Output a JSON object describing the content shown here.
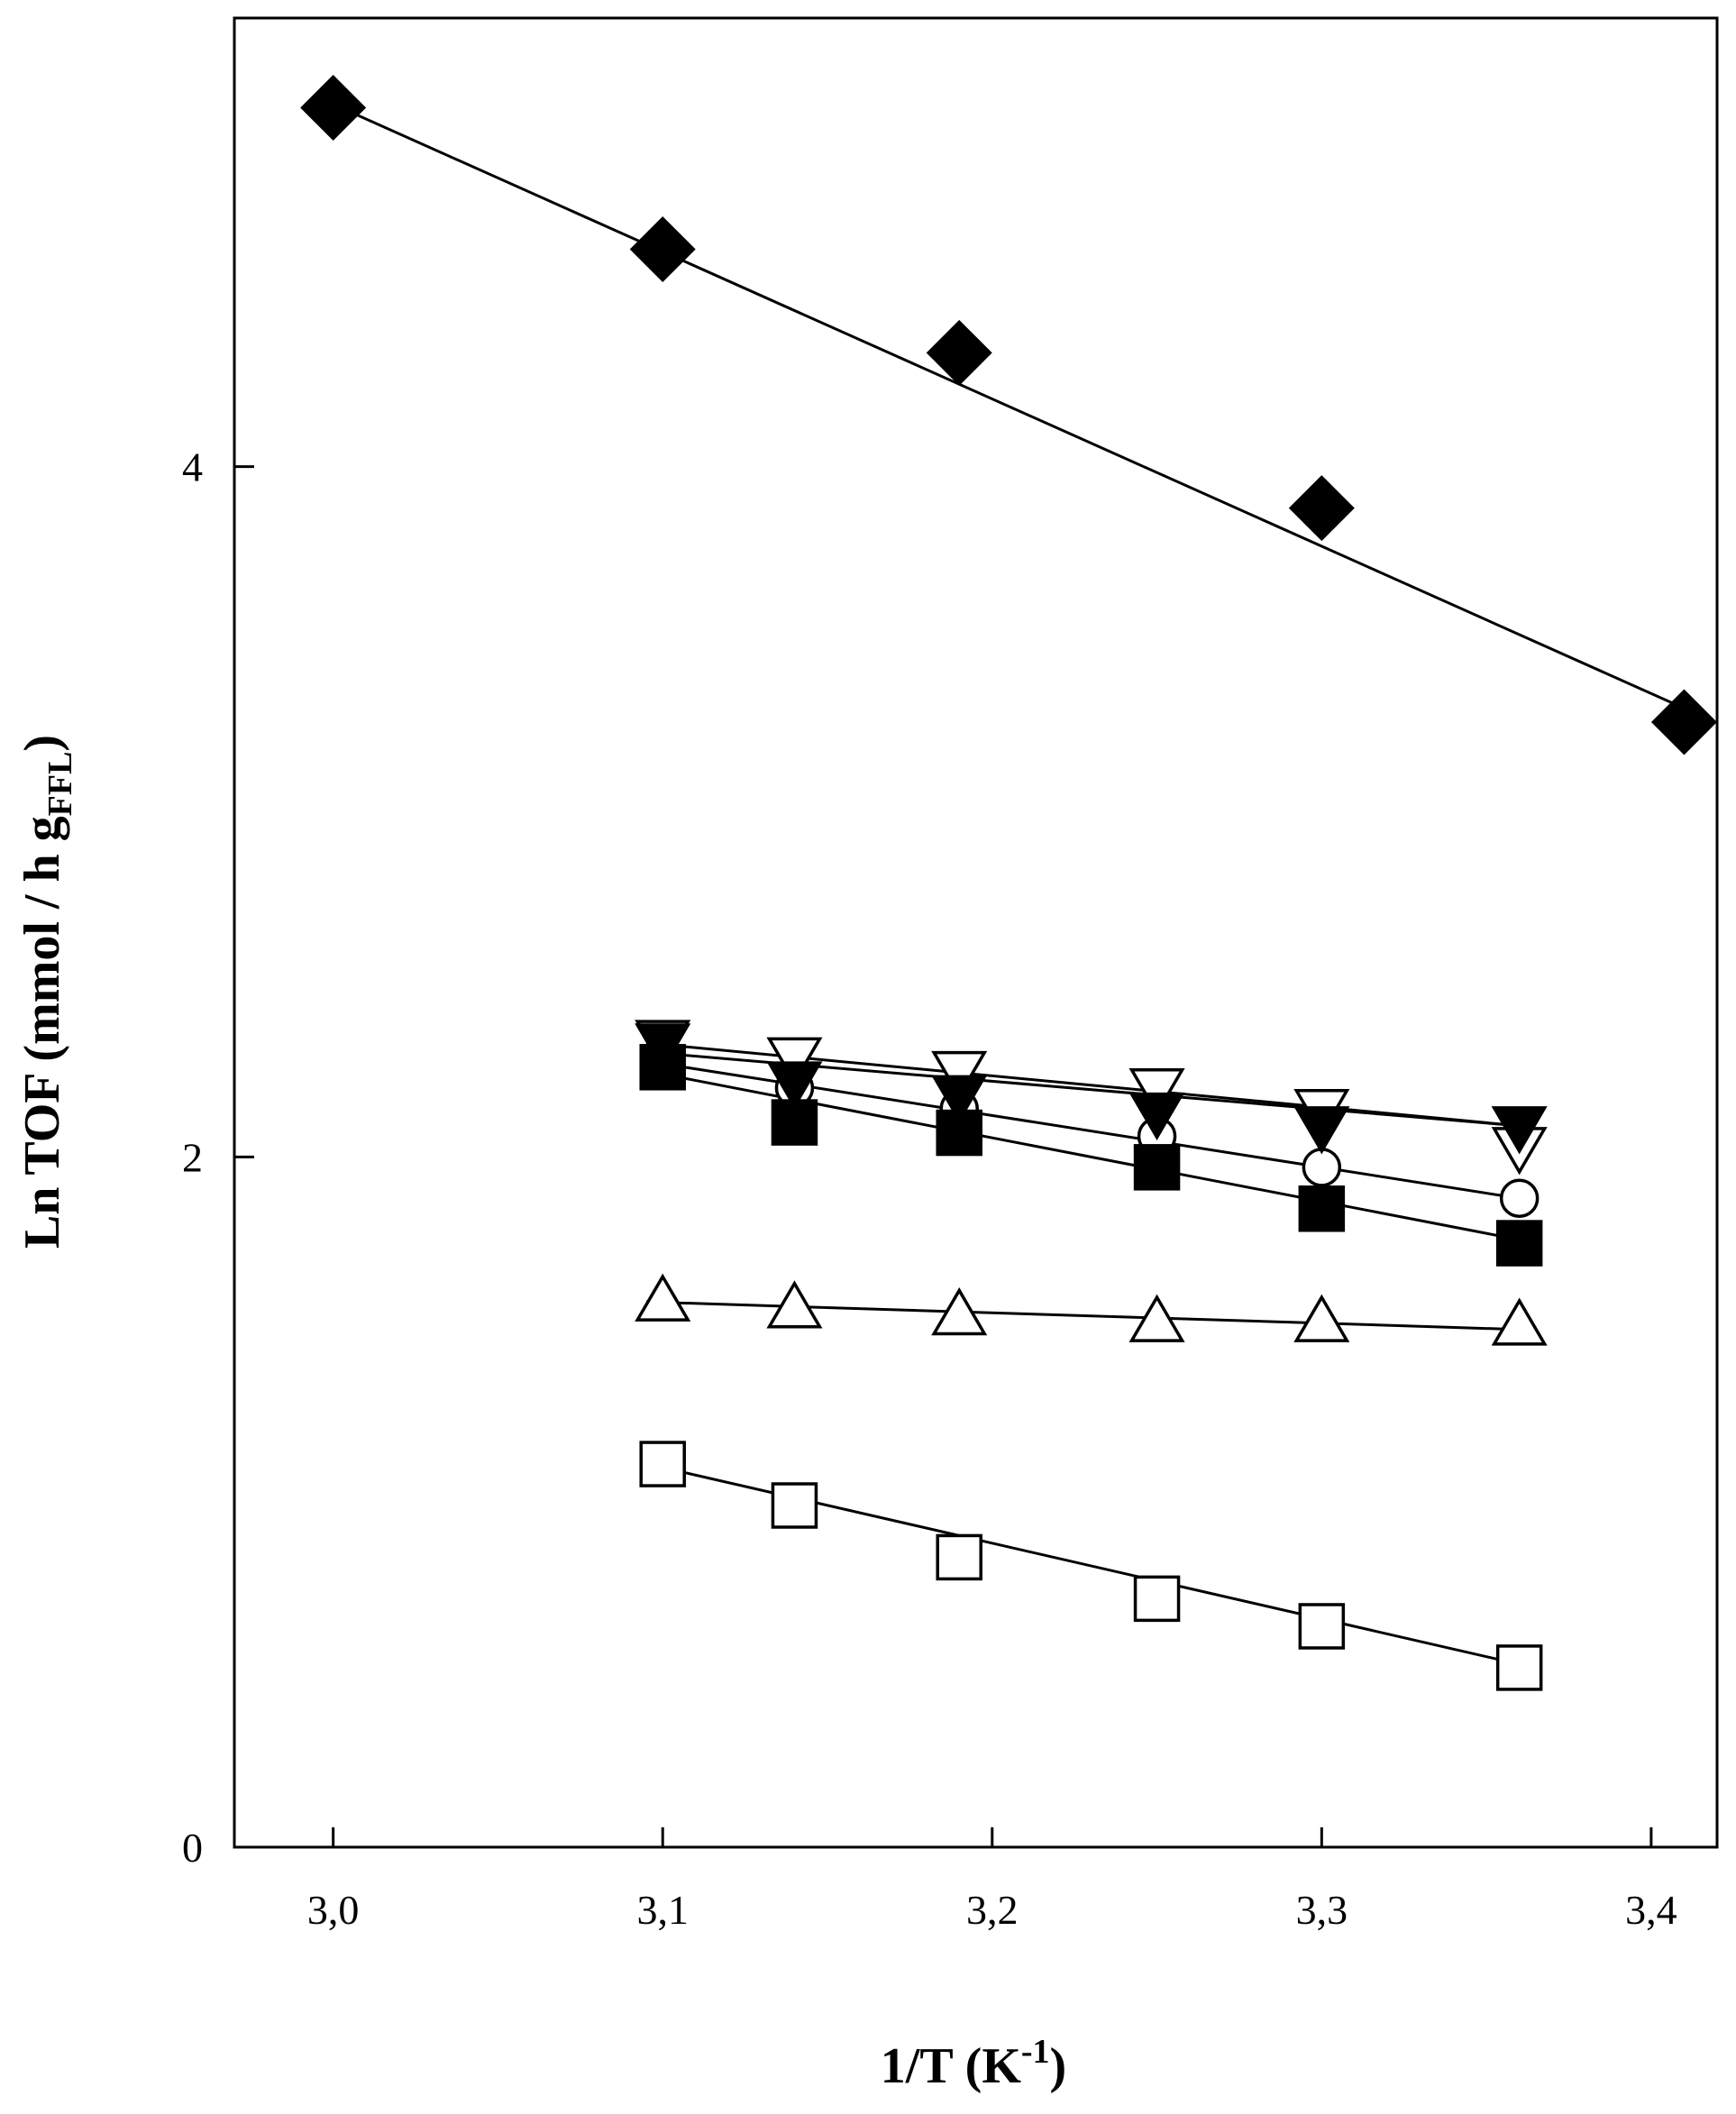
{
  "chart_data": {
    "type": "scatter",
    "title": "",
    "xlabel": {
      "main": "1/T (K",
      "sup": "-1",
      "close": ")"
    },
    "ylabel": {
      "main": "Ln TOF (mmol / h g",
      "sub": "FFL",
      "close": ")"
    },
    "xlim": [
      2.97,
      3.42
    ],
    "ylim": [
      0,
      5.3
    ],
    "xticks": [
      3.0,
      3.1,
      3.2,
      3.3,
      3.4
    ],
    "xtick_labels": [
      "3,0",
      "3,1",
      "3,2",
      "3,3",
      "3,4"
    ],
    "yticks": [
      0,
      2,
      4
    ],
    "ytick_labels": [
      "0",
      "2",
      "4"
    ],
    "grid": false,
    "series": [
      {
        "name": "filled-diamond",
        "marker": "diamond",
        "filled": true,
        "x": [
          3.0,
          3.1,
          3.19,
          3.3,
          3.41
        ],
        "y": [
          5.04,
          4.63,
          4.33,
          3.88,
          3.26
        ],
        "fit": {
          "x": [
            3.0,
            3.41
          ],
          "y": [
            5.05,
            3.3
          ]
        }
      },
      {
        "name": "open-down-triangle",
        "marker": "triangle-down",
        "filled": false,
        "x": [
          3.1,
          3.14,
          3.19,
          3.25,
          3.3,
          3.36
        ],
        "y": [
          2.34,
          2.29,
          2.25,
          2.2,
          2.14,
          2.03
        ],
        "fit": {
          "x": [
            3.095,
            3.36
          ],
          "y": [
            2.33,
            2.09
          ]
        }
      },
      {
        "name": "filled-down-triangle",
        "marker": "triangle-down",
        "filled": true,
        "x": [
          3.1,
          3.14,
          3.19,
          3.25,
          3.3,
          3.36
        ],
        "y": [
          2.33,
          2.22,
          2.18,
          2.13,
          2.09,
          2.09
        ],
        "fit": {
          "x": [
            3.1,
            3.36
          ],
          "y": [
            2.3,
            2.09
          ]
        }
      },
      {
        "name": "open-circle",
        "marker": "circle",
        "filled": false,
        "x": [
          3.1,
          3.14,
          3.19,
          3.25,
          3.3,
          3.36
        ],
        "y": [
          2.28,
          2.2,
          2.14,
          2.06,
          1.97,
          1.88
        ],
        "fit": {
          "x": [
            3.1,
            3.36
          ],
          "y": [
            2.27,
            1.88
          ]
        }
      },
      {
        "name": "filled-square",
        "marker": "square",
        "filled": true,
        "x": [
          3.1,
          3.14,
          3.19,
          3.25,
          3.3,
          3.36
        ],
        "y": [
          2.26,
          2.1,
          2.07,
          1.97,
          1.85,
          1.75
        ],
        "fit": {
          "x": [
            3.1,
            3.36
          ],
          "y": [
            2.24,
            1.76
          ]
        }
      },
      {
        "name": "open-up-triangle",
        "marker": "triangle-up",
        "filled": false,
        "x": [
          3.1,
          3.14,
          3.19,
          3.25,
          3.3,
          3.36
        ],
        "y": [
          1.58,
          1.56,
          1.54,
          1.52,
          1.52,
          1.51
        ],
        "fit": {
          "x": [
            3.095,
            3.36
          ],
          "y": [
            1.58,
            1.5
          ]
        }
      },
      {
        "name": "open-square",
        "marker": "square",
        "filled": false,
        "x": [
          3.1,
          3.14,
          3.19,
          3.25,
          3.3,
          3.36
        ],
        "y": [
          1.11,
          0.99,
          0.84,
          0.72,
          0.64,
          0.52
        ],
        "fit": {
          "x": [
            3.1,
            3.36
          ],
          "y": [
            1.1,
            0.53
          ]
        }
      }
    ]
  }
}
